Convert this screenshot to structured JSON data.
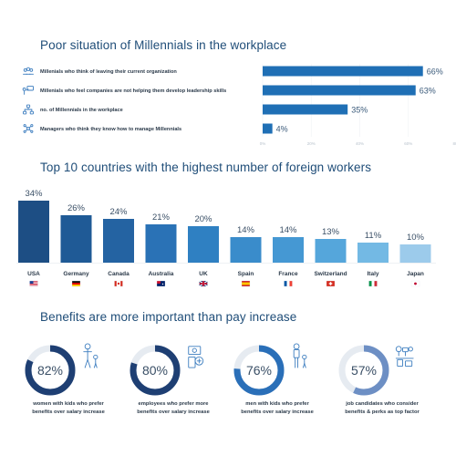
{
  "sections": {
    "workplace_title": "Poor situation of Millennials in the workplace",
    "countries_title": "Top 10 countries with the highest number of foreign workers",
    "benefits_title": "Benefits are more important than pay increase"
  },
  "chart_data": [
    {
      "type": "bar",
      "orientation": "horizontal",
      "categories": [
        "Millenials who think of leaving their current organization",
        "Millenials who feel companies are not helping them develop leadership skills",
        "no. of Millennials in the workplace",
        "Managers who think they know how to manage Millennials"
      ],
      "values": [
        66,
        63,
        35,
        4
      ],
      "value_labels": [
        "66%",
        "63%",
        "35%",
        "4%"
      ],
      "xticks": [
        "0%",
        "20%",
        "40%",
        "60%",
        "80%"
      ],
      "xlim": [
        0,
        80
      ],
      "icons": [
        "group-icon",
        "presenter-icon",
        "org-chart-icon",
        "network-icon"
      ],
      "bar_color": "#1f6fb5",
      "grid": true
    },
    {
      "type": "bar",
      "categories": [
        "USA",
        "Germany",
        "Canada",
        "Australia",
        "UK",
        "Spain",
        "France",
        "Switzerland",
        "Italy",
        "Japan"
      ],
      "values": [
        34,
        26,
        24,
        21,
        20,
        14,
        14,
        13,
        11,
        10
      ],
      "value_labels": [
        "34%",
        "26%",
        "24%",
        "21%",
        "20%",
        "14%",
        "14%",
        "13%",
        "11%",
        "10%"
      ],
      "flags": [
        "flag-usa-icon",
        "flag-germany-icon",
        "flag-canada-icon",
        "flag-australia-icon",
        "flag-uk-icon",
        "flag-spain-icon",
        "flag-france-icon",
        "flag-switzerland-icon",
        "flag-italy-icon",
        "flag-japan-icon"
      ],
      "colors": [
        "#1d4e84",
        "#1f5a96",
        "#2463a2",
        "#2a72b6",
        "#2f80c2",
        "#3a8ccb",
        "#4598d3",
        "#55a6db",
        "#73b9e4",
        "#9ccbeb"
      ],
      "ylim": [
        0,
        40
      ]
    },
    {
      "type": "pie",
      "style": "donut",
      "items": [
        {
          "value": 82,
          "label": "82%",
          "caption": [
            "women with kids who prefer",
            "benefits over salary increase"
          ],
          "icon": "mother-child-icon",
          "color": "#1e3f73"
        },
        {
          "value": 80,
          "label": "80%",
          "caption": [
            "employees who prefer more",
            "benefits over salary increase"
          ],
          "icon": "money-benefits-icon",
          "color": "#1e3f73"
        },
        {
          "value": 76,
          "label": "76%",
          "caption": [
            "men with kids who prefer",
            "benefits over salary increase"
          ],
          "icon": "father-child-icon",
          "color": "#2a6fb8"
        },
        {
          "value": 57,
          "label": "57%",
          "caption": [
            "job candidates who consider",
            "benefits & perks as top factor"
          ],
          "icon": "perks-icon",
          "color": "#6d8fc4"
        }
      ],
      "track_color": "#e6ebf1"
    }
  ]
}
